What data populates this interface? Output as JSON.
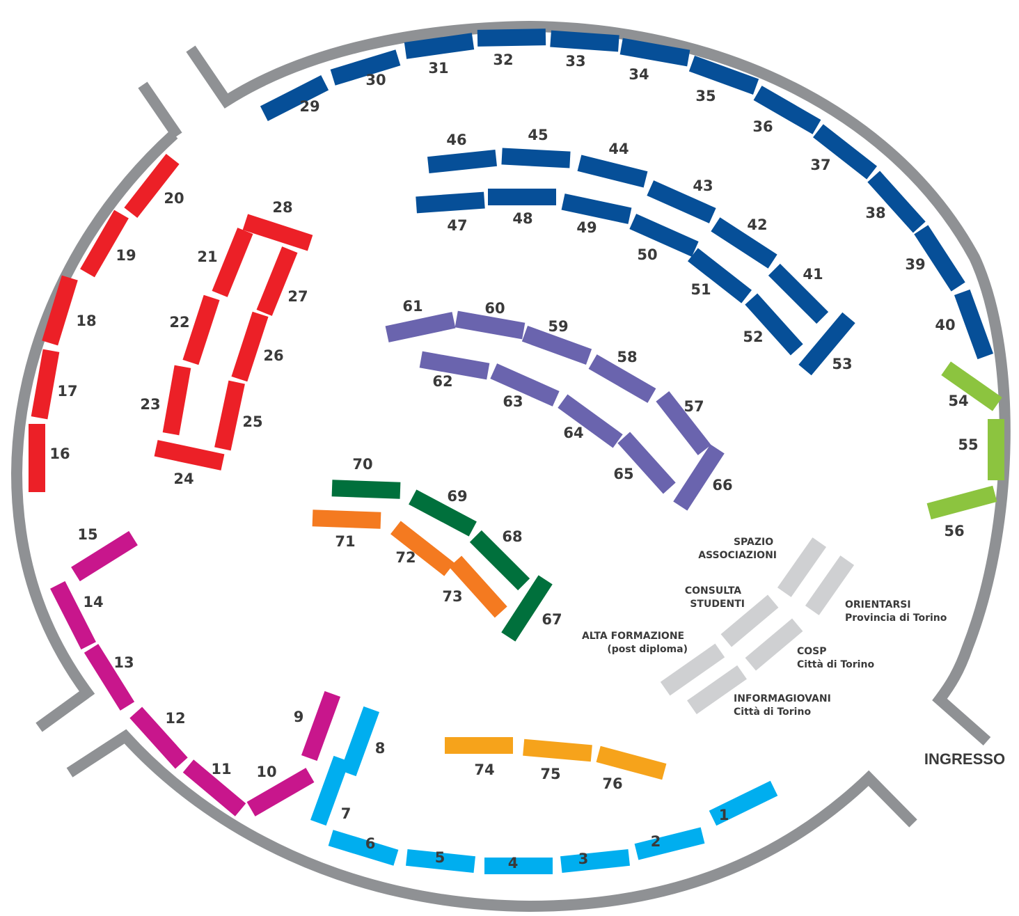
{
  "colors": {
    "wall": "#8f9194",
    "navy": "#064f98",
    "red": "#ec2027",
    "purple": "#6a64ae",
    "darkgreen": "#00703c",
    "orange": "#f47a20",
    "lightgreen": "#8cc43f",
    "magenta": "#c8168c",
    "cyan": "#00aeef",
    "yellow": "#f6a31b",
    "gray": "#cfd0d2"
  },
  "entrance_label": "INGRESSO",
  "stands": [
    {
      "id": "1",
      "color": "cyan"
    },
    {
      "id": "2",
      "color": "cyan"
    },
    {
      "id": "3",
      "color": "cyan"
    },
    {
      "id": "4",
      "color": "cyan"
    },
    {
      "id": "5",
      "color": "cyan"
    },
    {
      "id": "6",
      "color": "cyan"
    },
    {
      "id": "7",
      "color": "cyan"
    },
    {
      "id": "8",
      "color": "cyan"
    },
    {
      "id": "9",
      "color": "magenta"
    },
    {
      "id": "10",
      "color": "magenta"
    },
    {
      "id": "11",
      "color": "magenta"
    },
    {
      "id": "12",
      "color": "magenta"
    },
    {
      "id": "13",
      "color": "magenta"
    },
    {
      "id": "14",
      "color": "magenta"
    },
    {
      "id": "15",
      "color": "magenta"
    },
    {
      "id": "16",
      "color": "red"
    },
    {
      "id": "17",
      "color": "red"
    },
    {
      "id": "18",
      "color": "red"
    },
    {
      "id": "19",
      "color": "red"
    },
    {
      "id": "20",
      "color": "red"
    },
    {
      "id": "21",
      "color": "red"
    },
    {
      "id": "22",
      "color": "red"
    },
    {
      "id": "23",
      "color": "red"
    },
    {
      "id": "24",
      "color": "red"
    },
    {
      "id": "25",
      "color": "red"
    },
    {
      "id": "26",
      "color": "red"
    },
    {
      "id": "27",
      "color": "red"
    },
    {
      "id": "28",
      "color": "red"
    },
    {
      "id": "29",
      "color": "navy"
    },
    {
      "id": "30",
      "color": "navy"
    },
    {
      "id": "31",
      "color": "navy"
    },
    {
      "id": "32",
      "color": "navy"
    },
    {
      "id": "33",
      "color": "navy"
    },
    {
      "id": "34",
      "color": "navy"
    },
    {
      "id": "35",
      "color": "navy"
    },
    {
      "id": "36",
      "color": "navy"
    },
    {
      "id": "37",
      "color": "navy"
    },
    {
      "id": "38",
      "color": "navy"
    },
    {
      "id": "39",
      "color": "navy"
    },
    {
      "id": "40",
      "color": "navy"
    },
    {
      "id": "41",
      "color": "navy"
    },
    {
      "id": "42",
      "color": "navy"
    },
    {
      "id": "43",
      "color": "navy"
    },
    {
      "id": "44",
      "color": "navy"
    },
    {
      "id": "45",
      "color": "navy"
    },
    {
      "id": "46",
      "color": "navy"
    },
    {
      "id": "47",
      "color": "navy"
    },
    {
      "id": "48",
      "color": "navy"
    },
    {
      "id": "49",
      "color": "navy"
    },
    {
      "id": "50",
      "color": "navy"
    },
    {
      "id": "51",
      "color": "navy"
    },
    {
      "id": "52",
      "color": "navy"
    },
    {
      "id": "53",
      "color": "navy"
    },
    {
      "id": "54",
      "color": "lightgreen"
    },
    {
      "id": "55",
      "color": "lightgreen"
    },
    {
      "id": "56",
      "color": "lightgreen"
    },
    {
      "id": "57",
      "color": "purple"
    },
    {
      "id": "58",
      "color": "purple"
    },
    {
      "id": "59",
      "color": "purple"
    },
    {
      "id": "60",
      "color": "purple"
    },
    {
      "id": "61",
      "color": "purple"
    },
    {
      "id": "62",
      "color": "purple"
    },
    {
      "id": "63",
      "color": "purple"
    },
    {
      "id": "64",
      "color": "purple"
    },
    {
      "id": "65",
      "color": "purple"
    },
    {
      "id": "66",
      "color": "purple"
    },
    {
      "id": "67",
      "color": "darkgreen"
    },
    {
      "id": "68",
      "color": "darkgreen"
    },
    {
      "id": "69",
      "color": "darkgreen"
    },
    {
      "id": "70",
      "color": "darkgreen"
    },
    {
      "id": "71",
      "color": "orange"
    },
    {
      "id": "72",
      "color": "orange"
    },
    {
      "id": "73",
      "color": "orange"
    },
    {
      "id": "74",
      "color": "yellow"
    },
    {
      "id": "75",
      "color": "yellow"
    },
    {
      "id": "76",
      "color": "yellow"
    }
  ],
  "areas": [
    {
      "key": "spazio",
      "lines": [
        "SPAZIO",
        "ASSOCIAZIONI"
      ]
    },
    {
      "key": "consulta",
      "lines": [
        "CONSULTA",
        "STUDENTI"
      ]
    },
    {
      "key": "orientarsi",
      "lines": [
        "ORIENTARSI",
        "Provincia di Torino"
      ]
    },
    {
      "key": "alta",
      "lines": [
        "ALTA FORMAZIONE",
        "(post diploma)"
      ]
    },
    {
      "key": "cosp",
      "lines": [
        "COSP",
        "Città di Torino"
      ]
    },
    {
      "key": "informagiovani",
      "lines": [
        "INFORMAGIOVANI",
        "Città di Torino"
      ]
    }
  ]
}
